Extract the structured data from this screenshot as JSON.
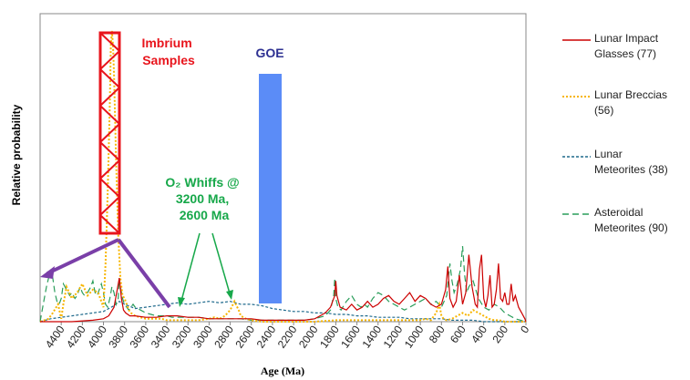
{
  "chart_data": {
    "type": "line",
    "xlabel": "Age (Ma)",
    "ylabel": "Relative probability",
    "xlim": [
      4600,
      0
    ],
    "x_reversed": true,
    "ylim": [
      0,
      1
    ],
    "grid": false,
    "legend_placement": "right",
    "x_ticks": [
      "4400",
      "4200",
      "4000",
      "3800",
      "3600",
      "3400",
      "3200",
      "3000",
      "2800",
      "2600",
      "2400",
      "2200",
      "2000",
      "1800",
      "1600",
      "1400",
      "1200",
      "1000",
      "800",
      "600",
      "400",
      "200",
      "0"
    ],
    "series": [
      {
        "name": "Lunar Impact Glasses (77)",
        "label_lines": [
          "Lunar Impact",
          "Glasses (77)"
        ],
        "color": "#cc0000",
        "style": "solid",
        "x": [
          4600,
          4300,
          4100,
          4000,
          3950,
          3900,
          3870,
          3850,
          3830,
          3810,
          3790,
          3750,
          3700,
          3600,
          3500,
          3400,
          3300,
          3200,
          3100,
          3000,
          2900,
          2800,
          2700,
          2600,
          2500,
          2400,
          2300,
          2200,
          2100,
          2000,
          1950,
          1900,
          1850,
          1810,
          1800,
          1790,
          1760,
          1700,
          1650,
          1600,
          1550,
          1500,
          1450,
          1400,
          1350,
          1300,
          1250,
          1200,
          1150,
          1100,
          1050,
          1000,
          950,
          900,
          850,
          800,
          760,
          740,
          720,
          690,
          660,
          630,
          600,
          570,
          540,
          510,
          480,
          460,
          440,
          420,
          400,
          380,
          360,
          340,
          320,
          300,
          280,
          260,
          240,
          220,
          200,
          180,
          160,
          140,
          120,
          100,
          70,
          40,
          10,
          0
        ],
        "y": [
          0.0,
          0.0,
          0.005,
          0.01,
          0.02,
          0.05,
          0.11,
          0.15,
          0.08,
          0.04,
          0.03,
          0.02,
          0.02,
          0.015,
          0.015,
          0.02,
          0.02,
          0.015,
          0.015,
          0.01,
          0.01,
          0.01,
          0.01,
          0.01,
          0.005,
          0.005,
          0.005,
          0.005,
          0.005,
          0.01,
          0.02,
          0.03,
          0.05,
          0.09,
          0.14,
          0.09,
          0.05,
          0.04,
          0.06,
          0.04,
          0.05,
          0.07,
          0.05,
          0.06,
          0.08,
          0.09,
          0.07,
          0.06,
          0.08,
          0.1,
          0.07,
          0.09,
          0.08,
          0.06,
          0.05,
          0.06,
          0.11,
          0.19,
          0.08,
          0.05,
          0.07,
          0.16,
          0.06,
          0.1,
          0.23,
          0.12,
          0.06,
          0.05,
          0.18,
          0.23,
          0.08,
          0.05,
          0.09,
          0.16,
          0.05,
          0.06,
          0.11,
          0.2,
          0.08,
          0.07,
          0.1,
          0.06,
          0.06,
          0.13,
          0.07,
          0.09,
          0.05,
          0.03,
          0.01,
          0.0
        ]
      },
      {
        "name": "Lunar Breccias (56)",
        "label_lines": [
          "Lunar Breccias",
          "(56)"
        ],
        "color": "#f7b500",
        "style": "dotted",
        "x": [
          4600,
          4560,
          4520,
          4480,
          4430,
          4400,
          4380,
          4350,
          4300,
          4250,
          4200,
          4150,
          4100,
          4050,
          4000,
          3980,
          3960,
          3940,
          3930,
          3920,
          3910,
          3900,
          3880,
          3860,
          3840,
          3820,
          3800,
          3780,
          3760,
          3740,
          3700,
          3650,
          3600,
          3550,
          3500,
          3450,
          3400,
          3350,
          3300,
          3200,
          3100,
          3000,
          2950,
          2900,
          2850,
          2800,
          2760,
          2720,
          2700,
          2650,
          2600,
          2500,
          2400,
          2200,
          2000,
          1800,
          1600,
          1400,
          1200,
          1000,
          950,
          900,
          850,
          820,
          800,
          780,
          750,
          700,
          650,
          600,
          550,
          500,
          450,
          400,
          350,
          300,
          250,
          200,
          150,
          100,
          50,
          0
        ],
        "y": [
          0.0,
          0.005,
          0.01,
          0.03,
          0.06,
          0.01,
          0.06,
          0.12,
          0.08,
          0.1,
          0.13,
          0.09,
          0.11,
          0.1,
          0.05,
          0.2,
          0.45,
          0.75,
          0.95,
          1.0,
          0.95,
          0.85,
          0.55,
          0.3,
          0.15,
          0.09,
          0.08,
          0.06,
          0.04,
          0.03,
          0.02,
          0.015,
          0.01,
          0.01,
          0.01,
          0.01,
          0.005,
          0.005,
          0.005,
          0.005,
          0.005,
          0.01,
          0.015,
          0.01,
          0.02,
          0.04,
          0.07,
          0.04,
          0.02,
          0.01,
          0.005,
          0.0,
          0.0,
          0.0,
          0.0,
          0.005,
          0.005,
          0.005,
          0.005,
          0.005,
          0.01,
          0.005,
          0.03,
          0.06,
          0.02,
          0.01,
          0.005,
          0.01,
          0.02,
          0.03,
          0.02,
          0.04,
          0.03,
          0.02,
          0.01,
          0.005,
          0.005,
          0.0,
          0.0,
          0.0,
          0.0,
          0.0
        ]
      },
      {
        "name": "Lunar Meteorites (38)",
        "label_lines": [
          "Lunar",
          "Meteorites (38)"
        ],
        "color": "#1f6a8c",
        "style": "dashed",
        "x": [
          4600,
          4500,
          4400,
          4300,
          4200,
          4100,
          4000,
          3950,
          3900,
          3850,
          3800,
          3700,
          3600,
          3500,
          3400,
          3300,
          3200,
          3100,
          3000,
          2900,
          2800,
          2700,
          2600,
          2500,
          2400,
          2300,
          2200,
          2100,
          2000,
          1900,
          1800,
          1700,
          1600,
          1500,
          1400,
          1300,
          1200,
          1100,
          1000,
          900,
          800,
          700,
          600,
          500,
          400,
          300,
          200,
          100,
          0
        ],
        "y": [
          0.0,
          0.01,
          0.015,
          0.02,
          0.025,
          0.03,
          0.035,
          0.045,
          0.055,
          0.07,
          0.06,
          0.045,
          0.05,
          0.055,
          0.06,
          0.065,
          0.06,
          0.065,
          0.07,
          0.065,
          0.07,
          0.06,
          0.06,
          0.055,
          0.045,
          0.04,
          0.035,
          0.035,
          0.03,
          0.03,
          0.025,
          0.025,
          0.02,
          0.02,
          0.015,
          0.015,
          0.015,
          0.01,
          0.01,
          0.01,
          0.01,
          0.005,
          0.005,
          0.005,
          0.0,
          0.0,
          0.0,
          0.0,
          0.0
        ]
      },
      {
        "name": "Asteroidal Meteorites (90)",
        "label_lines": [
          "Asteroidal",
          "Meteorites (90)"
        ],
        "color": "#2a9d5a",
        "style": "longdash",
        "x": [
          4600,
          4580,
          4560,
          4540,
          4520,
          4500,
          4480,
          4460,
          4440,
          4420,
          4400,
          4380,
          4350,
          4320,
          4300,
          4270,
          4250,
          4220,
          4200,
          4180,
          4150,
          4120,
          4100,
          4080,
          4060,
          4040,
          4020,
          4000,
          3980,
          3960,
          3940,
          3920,
          3900,
          3880,
          3860,
          3850,
          3840,
          3820,
          3800,
          3780,
          3760,
          3740,
          3720,
          3700,
          3650,
          3600,
          3550,
          3500,
          3450,
          3400,
          3350,
          3300,
          3200,
          3100,
          3000,
          2900,
          2800,
          2700,
          2600,
          2500,
          2400,
          2300,
          2200,
          2100,
          2000,
          1900,
          1850,
          1820,
          1810,
          1800,
          1780,
          1750,
          1700,
          1650,
          1600,
          1560,
          1530,
          1500,
          1450,
          1400,
          1350,
          1300,
          1250,
          1200,
          1150,
          1100,
          1050,
          1000,
          950,
          900,
          850,
          800,
          750,
          720,
          700,
          680,
          650,
          620,
          600,
          580,
          560,
          540,
          500,
          450,
          400,
          350,
          300,
          250,
          200,
          150,
          100,
          50,
          0
        ],
        "y": [
          0.0,
          0.04,
          0.08,
          0.12,
          0.15,
          0.18,
          0.15,
          0.1,
          0.07,
          0.06,
          0.08,
          0.13,
          0.11,
          0.09,
          0.1,
          0.08,
          0.09,
          0.12,
          0.1,
          0.09,
          0.1,
          0.12,
          0.14,
          0.1,
          0.09,
          0.11,
          0.13,
          0.1,
          0.06,
          0.05,
          0.08,
          0.12,
          0.1,
          0.06,
          0.08,
          0.15,
          0.12,
          0.08,
          0.06,
          0.05,
          0.04,
          0.05,
          0.06,
          0.05,
          0.04,
          0.03,
          0.025,
          0.02,
          0.02,
          0.02,
          0.015,
          0.015,
          0.015,
          0.015,
          0.01,
          0.01,
          0.01,
          0.01,
          0.005,
          0.005,
          0.005,
          0.005,
          0.005,
          0.005,
          0.01,
          0.02,
          0.04,
          0.09,
          0.15,
          0.08,
          0.05,
          0.04,
          0.07,
          0.09,
          0.06,
          0.05,
          0.06,
          0.05,
          0.08,
          0.1,
          0.09,
          0.07,
          0.06,
          0.05,
          0.04,
          0.05,
          0.06,
          0.07,
          0.08,
          0.06,
          0.07,
          0.05,
          0.09,
          0.2,
          0.14,
          0.1,
          0.13,
          0.18,
          0.26,
          0.16,
          0.1,
          0.12,
          0.14,
          0.08,
          0.05,
          0.04,
          0.06,
          0.05,
          0.03,
          0.02,
          0.01,
          0.005,
          0.0
        ]
      }
    ],
    "annotations": [
      {
        "text_lines": [
          "Imbrium",
          "Samples"
        ],
        "color": "#e8141c"
      },
      {
        "text_lines": [
          "GOE"
        ],
        "color": "#2e3192"
      },
      {
        "text_lines": [
          "O₂ Whiffs @",
          "3200 Ma,",
          "2600 Ma"
        ],
        "color": "#17a84a"
      }
    ]
  }
}
